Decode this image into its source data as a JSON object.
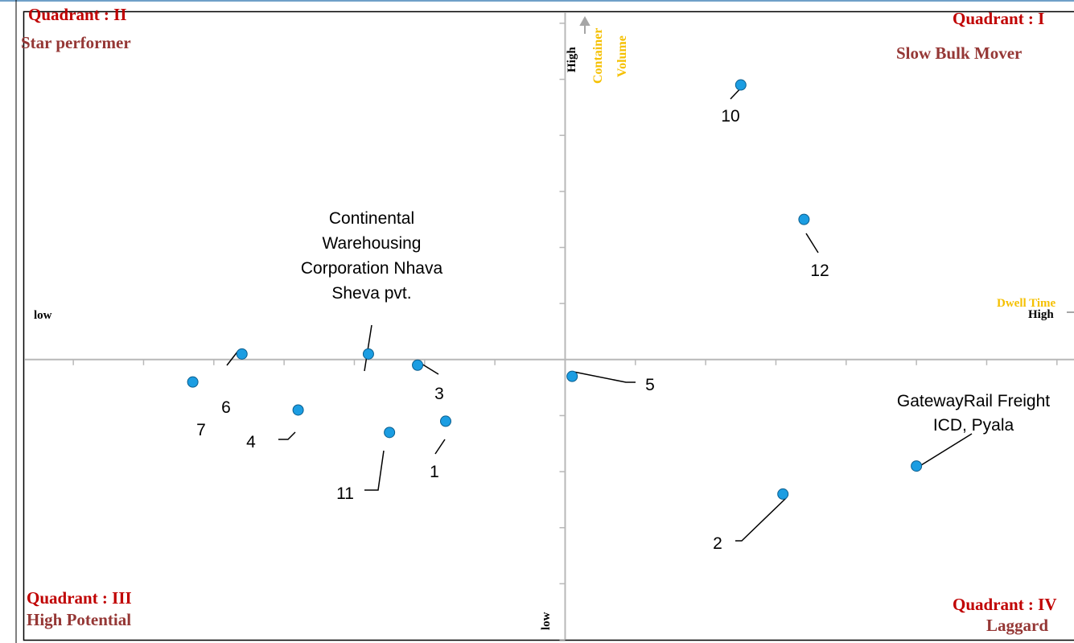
{
  "chart_data": {
    "type": "scatter",
    "quadrants": {
      "q1": {
        "number": "Quadrant : I",
        "name": "Slow Bulk Mover"
      },
      "q2": {
        "number": "Quadrant : II",
        "name": "Star performer"
      },
      "q3": {
        "number": "Quadrant : III",
        "name": "High Potential"
      },
      "q4": {
        "number": "Quadrant : IV",
        "name": "Laggard"
      }
    },
    "y_axis": {
      "title": "Container Volume",
      "high_label": "High",
      "low_label": "low"
    },
    "x_axis": {
      "title": "Dwell Time",
      "high_label": "High",
      "low_label": "low"
    },
    "xlim": [
      -7.7,
      7.3
    ],
    "ylim": [
      -5.0,
      6.2
    ],
    "colors": {
      "point": "#1b9de2",
      "point_edge": "#0b5e8e",
      "axis": "#b8b8b8",
      "quadrant_number": "#c00000",
      "quadrant_name": "#953735",
      "axis_title": "#f5c000"
    },
    "points": [
      {
        "label": "1",
        "x": -1.7,
        "y": -1.1
      },
      {
        "label": "2",
        "x": 3.1,
        "y": -2.4
      },
      {
        "label": "3",
        "x": -2.1,
        "y": -0.1
      },
      {
        "label": "4",
        "x": -3.8,
        "y": -0.9
      },
      {
        "label": "5",
        "x": 0.1,
        "y": -0.3
      },
      {
        "label": "6",
        "x": -4.6,
        "y": 0.1
      },
      {
        "label": "7",
        "x": -5.3,
        "y": -0.4
      },
      {
        "label": "10",
        "x": 2.5,
        "y": 4.9
      },
      {
        "label": "11",
        "x": -2.5,
        "y": -1.3
      },
      {
        "label": "12",
        "x": 3.4,
        "y": 2.5
      },
      {
        "label": "Continental Warehousing Corporation Nhava Sheva pvt.",
        "x": -2.8,
        "y": 0.1
      },
      {
        "label": "GatewayRail Freight ICD, Pyala",
        "x": 5.0,
        "y": -1.9
      }
    ]
  }
}
